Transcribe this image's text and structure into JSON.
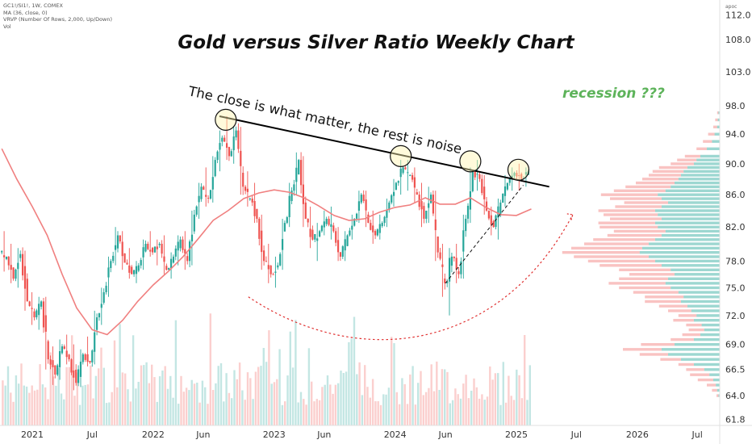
{
  "legend": {
    "symbol": "GC1!/SI1!, 1W, COMEX",
    "ma": "MA (36, close, 0)",
    "vrvp": "VRVP (Number Of Rows, 2,000, Up/Down)",
    "vol": "Vol"
  },
  "currency_label": "apoc",
  "colors": {
    "up": "#26a69a",
    "down": "#ef5350",
    "ma": "#f08080",
    "resistance": "#000000",
    "recession": "#5db35a",
    "curve": "#e03030",
    "circle_fill": "#fff3b0"
  },
  "chart_data": {
    "type": "candlestick",
    "title": "Gold versus Silver Ratio Weekly Chart",
    "xlabel": "",
    "ylabel": "",
    "x_ticks": [
      "2021",
      "Jul",
      "2022",
      "Jun",
      "2023",
      "Jun",
      "2024",
      "Jun",
      "2025",
      "Jul",
      "2026",
      "Jul"
    ],
    "x_tick_dates": [
      "2021-01-01",
      "2021-07-01",
      "2022-01-01",
      "2022-06-01",
      "2023-01-01",
      "2023-06-01",
      "2024-01-01",
      "2024-06-01",
      "2025-01-01",
      "2025-07-01",
      "2026-01-01",
      "2026-07-01"
    ],
    "y_ticks": [
      61.8,
      64.0,
      66.5,
      69.0,
      72.0,
      75.0,
      78.0,
      82.0,
      86.0,
      90.0,
      94.0,
      98.0,
      103.0,
      108.0,
      112.0
    ],
    "ylim": [
      61.8,
      114.0
    ],
    "y_scale": "log",
    "grid": false,
    "series": [
      {
        "name": "MA (36, close, 0)",
        "type": "line",
        "points": [
          [
            "2020-10-01",
            92.0
          ],
          [
            "2020-11-15",
            88.0
          ],
          [
            "2021-01-01",
            84.5
          ],
          [
            "2021-02-15",
            81.0
          ],
          [
            "2021-04-01",
            76.5
          ],
          [
            "2021-05-15",
            72.8
          ],
          [
            "2021-07-01",
            70.5
          ],
          [
            "2021-08-15",
            70.0
          ],
          [
            "2021-10-01",
            71.5
          ],
          [
            "2021-11-15",
            73.5
          ],
          [
            "2022-01-01",
            75.3
          ],
          [
            "2022-02-15",
            76.8
          ],
          [
            "2022-04-01",
            78.5
          ],
          [
            "2022-05-15",
            80.5
          ],
          [
            "2022-07-01",
            82.8
          ],
          [
            "2022-08-15",
            84.0
          ],
          [
            "2022-10-01",
            85.5
          ],
          [
            "2022-11-15",
            86.2
          ],
          [
            "2023-01-01",
            86.6
          ],
          [
            "2023-02-15",
            86.3
          ],
          [
            "2023-04-01",
            85.6
          ],
          [
            "2023-05-15",
            84.6
          ],
          [
            "2023-07-01",
            83.4
          ],
          [
            "2023-08-15",
            82.8
          ],
          [
            "2023-10-01",
            83.0
          ],
          [
            "2023-11-15",
            83.8
          ],
          [
            "2024-01-01",
            84.4
          ],
          [
            "2024-02-15",
            84.7
          ],
          [
            "2024-04-01",
            85.6
          ],
          [
            "2024-05-15",
            84.8
          ],
          [
            "2024-07-01",
            84.8
          ],
          [
            "2024-08-15",
            85.6
          ],
          [
            "2024-10-01",
            84.4
          ],
          [
            "2024-11-15",
            83.5
          ],
          [
            "2025-01-01",
            83.4
          ],
          [
            "2025-02-15",
            84.2
          ]
        ]
      }
    ],
    "candles": [
      [
        "2020-10-01",
        79.0,
        81.5,
        76.8,
        78.5
      ],
      [
        "2020-10-22",
        78.5,
        80.0,
        75.5,
        76.0
      ],
      [
        "2020-11-12",
        76.0,
        79.5,
        75.0,
        78.8
      ],
      [
        "2020-12-03",
        78.8,
        79.2,
        72.5,
        73.5
      ],
      [
        "2020-12-24",
        73.5,
        74.5,
        71.0,
        71.8
      ],
      [
        "2021-01-14",
        71.8,
        74.0,
        70.5,
        73.5
      ],
      [
        "2021-02-04",
        73.5,
        74.0,
        66.5,
        67.5
      ],
      [
        "2021-02-25",
        67.5,
        68.8,
        65.0,
        66.0
      ],
      [
        "2021-03-18",
        66.0,
        69.5,
        65.5,
        68.8
      ],
      [
        "2021-04-08",
        68.8,
        70.0,
        67.0,
        67.5
      ],
      [
        "2021-04-29",
        67.5,
        69.0,
        64.5,
        65.2
      ],
      [
        "2021-05-20",
        65.2,
        68.5,
        64.8,
        68.0
      ],
      [
        "2021-06-10",
        68.0,
        69.8,
        66.8,
        67.2
      ],
      [
        "2021-07-01",
        67.2,
        72.5,
        67.0,
        71.8
      ],
      [
        "2021-07-22",
        71.8,
        75.0,
        71.0,
        74.5
      ],
      [
        "2021-08-12",
        74.5,
        78.5,
        74.0,
        78.0
      ],
      [
        "2021-09-02",
        78.0,
        82.0,
        77.5,
        81.0
      ],
      [
        "2021-09-23",
        81.0,
        81.5,
        77.0,
        77.8
      ],
      [
        "2021-10-14",
        77.8,
        79.5,
        76.0,
        76.5
      ],
      [
        "2021-11-04",
        76.5,
        78.0,
        75.5,
        77.5
      ],
      [
        "2021-11-25",
        77.5,
        80.5,
        77.0,
        80.0
      ],
      [
        "2021-12-16",
        80.0,
        81.5,
        78.5,
        79.0
      ],
      [
        "2022-01-06",
        79.0,
        80.5,
        77.5,
        80.0
      ],
      [
        "2022-01-27",
        80.0,
        81.0,
        76.5,
        77.0
      ],
      [
        "2022-02-17",
        77.0,
        79.0,
        76.0,
        78.5
      ],
      [
        "2022-03-10",
        78.5,
        81.0,
        77.5,
        80.5
      ],
      [
        "2022-03-31",
        80.5,
        81.5,
        77.0,
        78.0
      ],
      [
        "2022-04-21",
        78.0,
        84.0,
        77.5,
        83.5
      ],
      [
        "2022-05-12",
        83.5,
        87.5,
        83.0,
        87.0
      ],
      [
        "2022-06-02",
        87.0,
        89.5,
        84.5,
        85.5
      ],
      [
        "2022-06-23",
        85.5,
        91.0,
        85.0,
        90.5
      ],
      [
        "2022-07-14",
        90.5,
        94.5,
        89.0,
        93.5
      ],
      [
        "2022-08-04",
        93.5,
        96.5,
        90.5,
        91.0
      ],
      [
        "2022-08-25",
        91.0,
        95.0,
        90.0,
        94.5
      ],
      [
        "2022-09-15",
        94.5,
        95.0,
        86.0,
        87.0
      ],
      [
        "2022-10-06",
        87.0,
        89.0,
        84.5,
        85.5
      ],
      [
        "2022-10-27",
        85.5,
        87.5,
        82.5,
        83.0
      ],
      [
        "2022-11-17",
        83.0,
        83.5,
        77.0,
        78.0
      ],
      [
        "2022-12-08",
        78.0,
        80.0,
        75.5,
        76.5
      ],
      [
        "2022-12-29",
        76.5,
        78.5,
        75.0,
        77.5
      ],
      [
        "2023-01-19",
        77.5,
        83.0,
        77.0,
        82.5
      ],
      [
        "2023-02-09",
        82.5,
        87.5,
        82.0,
        86.5
      ],
      [
        "2023-03-02",
        86.5,
        91.5,
        86.0,
        90.5
      ],
      [
        "2023-03-23",
        90.5,
        91.0,
        82.0,
        83.0
      ],
      [
        "2023-04-13",
        83.0,
        84.5,
        79.5,
        80.5
      ],
      [
        "2023-05-04",
        80.5,
        82.5,
        78.0,
        81.5
      ],
      [
        "2023-05-25",
        81.5,
        84.0,
        81.0,
        83.0
      ],
      [
        "2023-06-15",
        83.0,
        84.5,
        80.5,
        81.5
      ],
      [
        "2023-07-06",
        81.5,
        82.0,
        78.0,
        78.5
      ],
      [
        "2023-07-27",
        78.5,
        81.5,
        78.0,
        81.0
      ],
      [
        "2023-08-17",
        81.0,
        83.5,
        80.5,
        83.0
      ],
      [
        "2023-09-07",
        83.0,
        86.5,
        82.5,
        86.0
      ],
      [
        "2023-09-28",
        86.0,
        86.5,
        82.0,
        82.5
      ],
      [
        "2023-10-19",
        82.5,
        84.0,
        80.0,
        81.0
      ],
      [
        "2023-11-09",
        81.0,
        83.5,
        80.5,
        82.5
      ],
      [
        "2023-11-30",
        82.5,
        85.5,
        82.0,
        85.0
      ],
      [
        "2023-12-21",
        85.0,
        88.0,
        84.5,
        87.5
      ],
      [
        "2024-01-11",
        87.5,
        90.5,
        86.0,
        89.5
      ],
      [
        "2024-02-01",
        89.5,
        90.5,
        86.5,
        88.5
      ],
      [
        "2024-02-22",
        88.5,
        89.5,
        85.0,
        86.0
      ],
      [
        "2024-03-14",
        86.0,
        87.5,
        82.0,
        83.0
      ],
      [
        "2024-04-04",
        83.0,
        87.0,
        82.5,
        86.0
      ],
      [
        "2024-04-25",
        86.0,
        86.5,
        78.0,
        79.0
      ],
      [
        "2024-05-16",
        79.0,
        80.0,
        74.0,
        75.5
      ],
      [
        "2024-06-06",
        75.5,
        79.5,
        72.0,
        78.5
      ],
      [
        "2024-06-27",
        78.5,
        80.0,
        75.5,
        76.5
      ],
      [
        "2024-07-18",
        76.5,
        83.5,
        76.0,
        83.0
      ],
      [
        "2024-08-08",
        83.0,
        89.5,
        82.5,
        89.0
      ],
      [
        "2024-08-29",
        89.0,
        90.5,
        86.5,
        88.0
      ],
      [
        "2024-09-19",
        88.0,
        88.5,
        83.5,
        84.0
      ],
      [
        "2024-10-10",
        84.0,
        84.5,
        81.0,
        82.0
      ],
      [
        "2024-10-31",
        82.0,
        85.5,
        80.5,
        85.0
      ],
      [
        "2024-11-21",
        85.0,
        88.5,
        84.5,
        87.5
      ],
      [
        "2024-12-12",
        87.5,
        89.5,
        86.5,
        88.8
      ],
      [
        "2025-01-02",
        88.8,
        90.0,
        86.5,
        88.0
      ],
      [
        "2025-01-23",
        88.0,
        89.5,
        87.0,
        89.0
      ]
    ],
    "resistance_line": {
      "start": [
        "2022-07-20",
        96.5
      ],
      "end": [
        "2025-04-10",
        87.0
      ]
    },
    "touch_points": [
      [
        "2022-08-08",
        96.0
      ],
      [
        "2024-01-18",
        91.0
      ],
      [
        "2024-08-15",
        90.3
      ],
      [
        "2025-01-07",
        89.2
      ]
    ],
    "support_line": {
      "start": [
        "2024-06-01",
        75.5
      ],
      "end": [
        "2025-01-22",
        87.2
      ]
    },
    "recession_arrow": {
      "start": [
        "2022-10-15",
        74.0
      ],
      "end": [
        "2025-06-20",
        83.5
      ]
    },
    "annotations": [
      {
        "text": "The close is what matter, the rest is noise",
        "at": [
          "2023-06-01",
          94.0
        ]
      },
      {
        "text": "recession ???",
        "at": [
          "2025-08-01",
          98.5
        ]
      }
    ],
    "volume_profile": [
      [
        64.0,
        1.0,
        1.5
      ],
      [
        64.5,
        2.0,
        4.0
      ],
      [
        65.0,
        3.0,
        7.0
      ],
      [
        65.5,
        5.0,
        12.0
      ],
      [
        66.0,
        8.0,
        15.0
      ],
      [
        66.5,
        12.0,
        14.0
      ],
      [
        67.0,
        20.0,
        12.0
      ],
      [
        67.5,
        30.0,
        16.0
      ],
      [
        68.0,
        40.0,
        22.0
      ],
      [
        68.5,
        45.0,
        30.0
      ],
      [
        69.0,
        35.0,
        26.0
      ],
      [
        69.5,
        20.0,
        18.0
      ],
      [
        70.0,
        15.0,
        14.0
      ],
      [
        70.5,
        12.0,
        12.0
      ],
      [
        71.0,
        14.0,
        12.0
      ],
      [
        71.5,
        20.0,
        16.0
      ],
      [
        72.0,
        18.0,
        14.0
      ],
      [
        72.5,
        22.0,
        18.0
      ],
      [
        73.0,
        25.0,
        22.0
      ],
      [
        73.5,
        30.0,
        28.0
      ],
      [
        74.0,
        28.0,
        30.0
      ],
      [
        74.5,
        32.0,
        35.0
      ],
      [
        75.0,
        38.0,
        40.0
      ],
      [
        75.5,
        42.0,
        44.0
      ],
      [
        76.0,
        40.0,
        38.0
      ],
      [
        76.5,
        35.0,
        35.0
      ],
      [
        77.0,
        38.0,
        40.0
      ],
      [
        77.5,
        45.0,
        48.0
      ],
      [
        78.0,
        50.0,
        52.0
      ],
      [
        78.5,
        55.0,
        58.0
      ],
      [
        79.0,
        62.0,
        60.0
      ],
      [
        79.5,
        60.0,
        55.0
      ],
      [
        80.0,
        55.0,
        50.0
      ],
      [
        80.5,
        50.0,
        48.0
      ],
      [
        81.0,
        45.0,
        42.0
      ],
      [
        81.5,
        42.0,
        40.0
      ],
      [
        82.0,
        48.0,
        45.0
      ],
      [
        82.5,
        50.0,
        44.0
      ],
      [
        83.0,
        45.0,
        40.0
      ],
      [
        83.5,
        48.0,
        42.0
      ],
      [
        84.0,
        50.0,
        44.0
      ],
      [
        84.5,
        45.0,
        36.0
      ],
      [
        85.0,
        40.0,
        34.0
      ],
      [
        85.5,
        45.0,
        40.0
      ],
      [
        86.0,
        48.0,
        44.0
      ],
      [
        86.5,
        42.0,
        40.0
      ],
      [
        87.0,
        38.0,
        35.0
      ],
      [
        87.5,
        35.0,
        30.0
      ],
      [
        88.0,
        32.0,
        28.0
      ],
      [
        88.5,
        30.0,
        25.0
      ],
      [
        89.0,
        28.0,
        24.0
      ],
      [
        89.5,
        25.0,
        22.0
      ],
      [
        90.0,
        20.0,
        18.0
      ],
      [
        90.5,
        18.0,
        15.0
      ],
      [
        91.0,
        15.0,
        12.0
      ],
      [
        92.0,
        10.0,
        8.0
      ],
      [
        93.0,
        6.0,
        7.0
      ],
      [
        94.0,
        4.0,
        5.0
      ],
      [
        95.0,
        2.0,
        3.0
      ],
      [
        96.0,
        1.5,
        2.0
      ],
      [
        97.0,
        1.0,
        1.0
      ]
    ]
  }
}
